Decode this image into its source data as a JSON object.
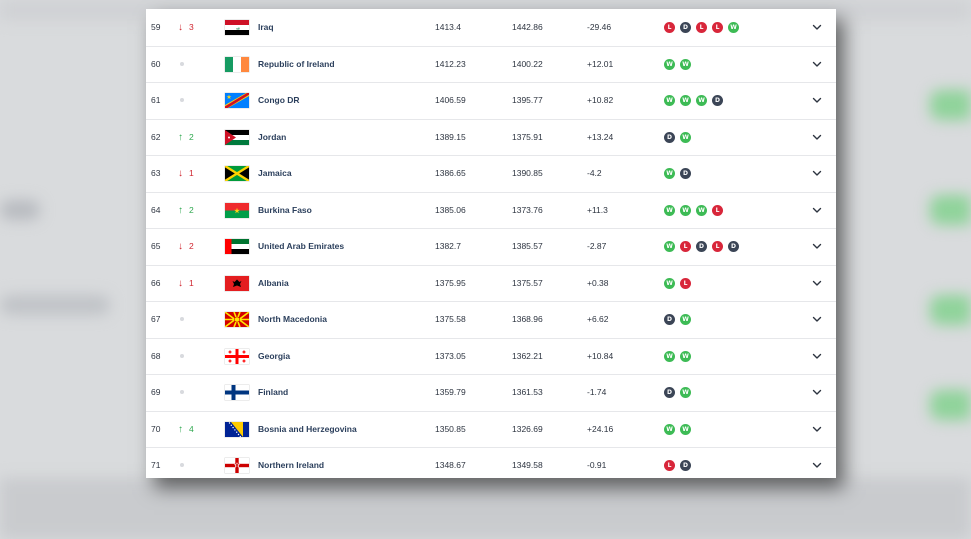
{
  "colors": {
    "win": "#3dbb55",
    "loss": "#d8263a",
    "draw": "#3b4556",
    "up": "#2fa84f",
    "down": "#d0252f"
  },
  "rows": [
    {
      "rank": "59",
      "move": "down",
      "change": "3",
      "country": "Iraq",
      "flag": "iraq",
      "points": "1413.4",
      "previous": "1442.86",
      "diff": "-29.46",
      "form": [
        "L",
        "D",
        "L",
        "L",
        "W"
      ]
    },
    {
      "rank": "60",
      "move": "none",
      "change": "",
      "country": "Republic of Ireland",
      "flag": "ireland",
      "points": "1412.23",
      "previous": "1400.22",
      "diff": "+12.01",
      "form": [
        "W",
        "W"
      ]
    },
    {
      "rank": "61",
      "move": "none",
      "change": "",
      "country": "Congo DR",
      "flag": "congo-dr",
      "points": "1406.59",
      "previous": "1395.77",
      "diff": "+10.82",
      "form": [
        "W",
        "W",
        "W",
        "D"
      ]
    },
    {
      "rank": "62",
      "move": "up",
      "change": "2",
      "country": "Jordan",
      "flag": "jordan",
      "points": "1389.15",
      "previous": "1375.91",
      "diff": "+13.24",
      "form": [
        "D",
        "W"
      ]
    },
    {
      "rank": "63",
      "move": "down",
      "change": "1",
      "country": "Jamaica",
      "flag": "jamaica",
      "points": "1386.65",
      "previous": "1390.85",
      "diff": "-4.2",
      "form": [
        "W",
        "D"
      ]
    },
    {
      "rank": "64",
      "move": "up",
      "change": "2",
      "country": "Burkina Faso",
      "flag": "burkina-faso",
      "points": "1385.06",
      "previous": "1373.76",
      "diff": "+11.3",
      "form": [
        "W",
        "W",
        "W",
        "L"
      ]
    },
    {
      "rank": "65",
      "move": "down",
      "change": "2",
      "country": "United Arab Emirates",
      "flag": "uae",
      "points": "1382.7",
      "previous": "1385.57",
      "diff": "-2.87",
      "form": [
        "W",
        "L",
        "D",
        "L",
        "D"
      ]
    },
    {
      "rank": "66",
      "move": "down",
      "change": "1",
      "country": "Albania",
      "flag": "albania",
      "points": "1375.95",
      "previous": "1375.57",
      "diff": "+0.38",
      "form": [
        "W",
        "L"
      ]
    },
    {
      "rank": "67",
      "move": "none",
      "change": "",
      "country": "North Macedonia",
      "flag": "north-macedonia",
      "points": "1375.58",
      "previous": "1368.96",
      "diff": "+6.62",
      "form": [
        "D",
        "W"
      ]
    },
    {
      "rank": "68",
      "move": "none",
      "change": "",
      "country": "Georgia",
      "flag": "georgia",
      "points": "1373.05",
      "previous": "1362.21",
      "diff": "+10.84",
      "form": [
        "W",
        "W"
      ]
    },
    {
      "rank": "69",
      "move": "none",
      "change": "",
      "country": "Finland",
      "flag": "finland",
      "points": "1359.79",
      "previous": "1361.53",
      "diff": "-1.74",
      "form": [
        "D",
        "W"
      ]
    },
    {
      "rank": "70",
      "move": "up",
      "change": "4",
      "country": "Bosnia and Herzegovina",
      "flag": "bosnia",
      "points": "1350.85",
      "previous": "1326.69",
      "diff": "+24.16",
      "form": [
        "W",
        "W"
      ]
    },
    {
      "rank": "71",
      "move": "none",
      "change": "",
      "country": "Northern Ireland",
      "flag": "northern-ireland",
      "points": "1348.67",
      "previous": "1349.58",
      "diff": "-0.91",
      "form": [
        "L",
        "D"
      ]
    }
  ]
}
